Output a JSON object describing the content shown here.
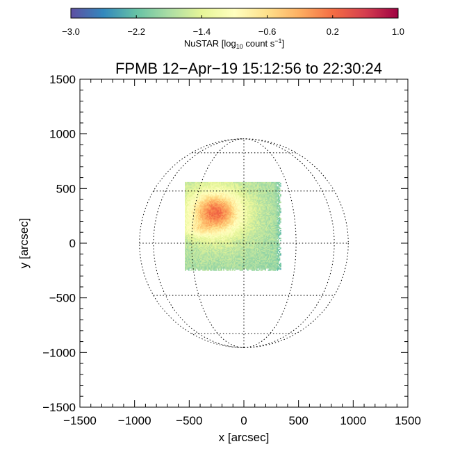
{
  "chart_data": {
    "type": "heatmap",
    "title": "FPMB 12−Apr−19 15:12:56 to 22:30:24",
    "xlabel": "x [arcsec]",
    "ylabel": "y [arcsec]",
    "xlim": [
      -1500,
      1500
    ],
    "ylim": [
      -1500,
      1500
    ],
    "xticks": [
      -1500,
      -1000,
      -500,
      0,
      500,
      1000,
      1500
    ],
    "yticks": [
      -1500,
      -1000,
      -500,
      0,
      500,
      1000,
      1500
    ],
    "xtick_labels": [
      "−1500",
      "−1000",
      "−500",
      "0",
      "500",
      "1000",
      "1500"
    ],
    "ytick_labels": [
      "−1500",
      "−1000",
      "−500",
      "0",
      "500",
      "1000",
      "1500"
    ],
    "minor_tick_step": 100,
    "solar_radius": 955,
    "grid_latitudes_deg": [
      -60,
      -30,
      0,
      30,
      60
    ],
    "grid_longitudes_deg": [
      -60,
      -30,
      0,
      30,
      60
    ],
    "grid": false,
    "colorbar": {
      "label_main": "NuSTAR [log",
      "label_sub": "10",
      "label_mid": " count s",
      "label_sup": "−1",
      "label_end": "]",
      "range": [
        -3.0,
        1.0
      ],
      "ticks": [
        -3.0,
        -2.2,
        -1.4,
        -0.6,
        0.2,
        1.0
      ],
      "tick_labels": [
        "−3.0",
        "−2.2",
        "−1.4",
        "−0.6",
        "0.2",
        "1.0"
      ],
      "colormap": [
        "#5e4fa2",
        "#3288bd",
        "#66c2a5",
        "#abdda4",
        "#e6f598",
        "#ffffbf",
        "#fee08b",
        "#fdae61",
        "#f46d43",
        "#d53e4f",
        "#9e0142"
      ]
    },
    "image": {
      "x_range": [
        -540,
        340
      ],
      "y_range": [
        -250,
        560
      ],
      "background_level": -1.9,
      "peak": {
        "x": -260,
        "y": 280,
        "level": 0.95,
        "sigma_x": 150,
        "sigma_y": 125
      },
      "secondary": {
        "x": -430,
        "y": 130,
        "level": -1.5,
        "sigma_x": 90,
        "sigma_y": 40
      }
    }
  }
}
